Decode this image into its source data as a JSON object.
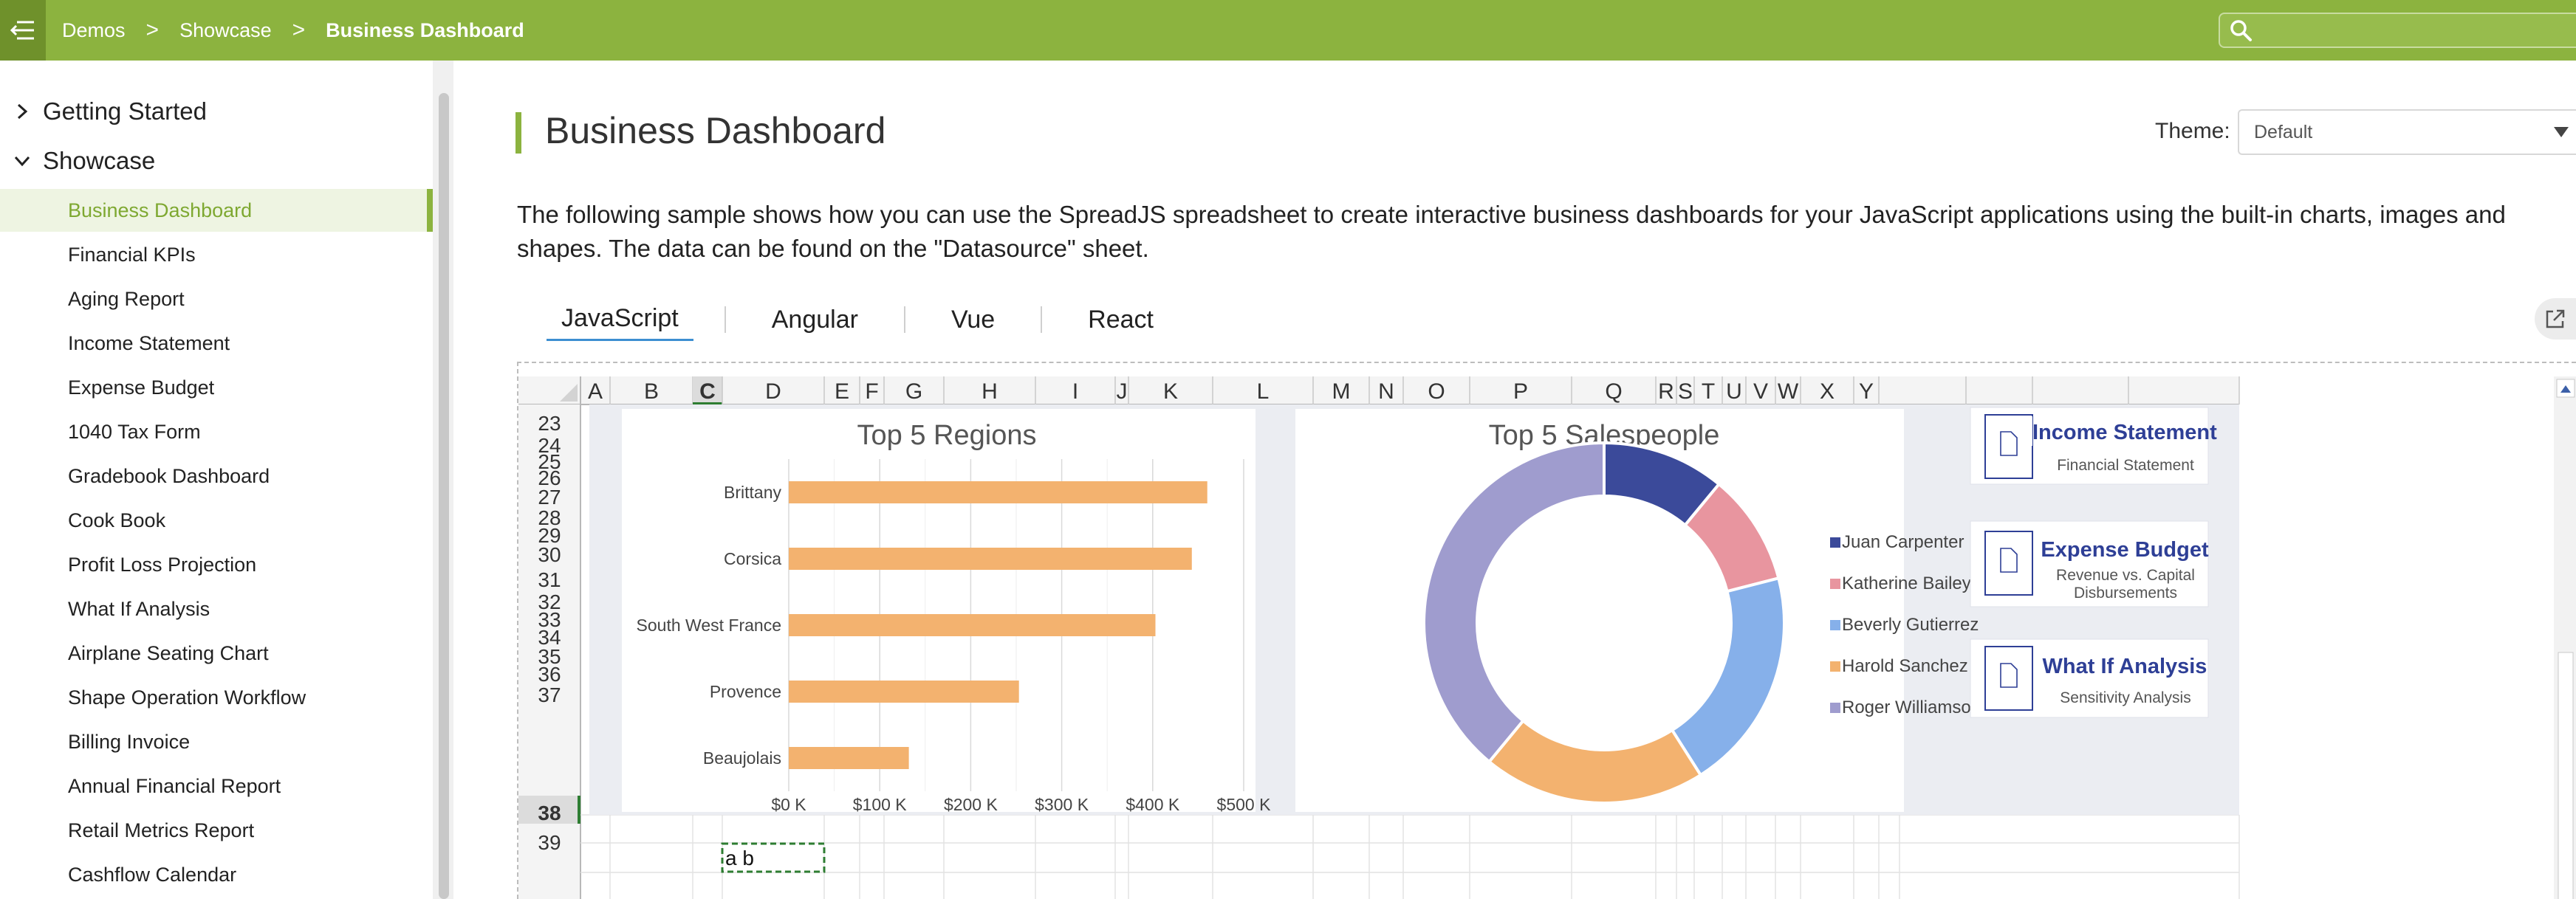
{
  "breadcrumb": [
    "Demos",
    "Showcase",
    "Business Dashboard"
  ],
  "breadcrumb_sep": ">",
  "sidebar": {
    "groups": [
      {
        "label": "Getting Started",
        "expanded": false
      },
      {
        "label": "Showcase",
        "expanded": true
      }
    ],
    "items": [
      "Business Dashboard",
      "Financial KPIs",
      "Aging Report",
      "Income Statement",
      "Expense Budget",
      "1040 Tax Form",
      "Gradebook Dashboard",
      "Cook Book",
      "Profit Loss Projection",
      "What If Analysis",
      "Airplane Seating Chart",
      "Shape Operation Workflow",
      "Billing Invoice",
      "Annual Financial Report",
      "Retail Metrics Report",
      "Cashflow Calendar"
    ],
    "active_item": "Business Dashboard"
  },
  "page": {
    "title": "Business Dashboard",
    "theme_label": "Theme:",
    "theme_value": "Default",
    "description": "The following sample shows how you can use the SpreadJS spreadsheet to create interactive business dashboards for your JavaScript applications using the built-in charts, images and shapes. The data can be found on the \"Datasource\" sheet."
  },
  "tabs": [
    "JavaScript",
    "Angular",
    "Vue",
    "React"
  ],
  "active_tab": "JavaScript",
  "spreadsheet": {
    "columns": [
      "A",
      "B",
      "C",
      "D",
      "E",
      "F",
      "G",
      "H",
      "I",
      "J",
      "K",
      "L",
      "M",
      "N",
      "O",
      "P",
      "Q",
      "R",
      "S",
      "T",
      "U",
      "V",
      "W",
      "X",
      "Y"
    ],
    "selected_column": "C",
    "rows": [
      "23",
      "24",
      "25",
      "26",
      "27",
      "28",
      "29",
      "30",
      "31",
      "32",
      "33",
      "34",
      "35",
      "36",
      "37",
      "38",
      "39"
    ],
    "selected_row": "38",
    "active_cell": "C38",
    "active_cell_value": "a b",
    "cards": [
      {
        "title": "Income Statement",
        "subtitle": "Financial Statement"
      },
      {
        "title": "Expense Budget",
        "subtitle": "Revenue vs. Capital Disbursements"
      },
      {
        "title": "What If Analysis",
        "subtitle": "Sensitivity Analysis"
      }
    ]
  },
  "colors": {
    "brand_green": "#8cb33f",
    "bar_orange": "#f3b26f",
    "card_blue": "#2e3f96",
    "donut": [
      "#3b4a9a",
      "#e8959f",
      "#86b0ea",
      "#f3b26f",
      "#9f9cce"
    ]
  },
  "chart_data": [
    {
      "type": "bar",
      "orientation": "horizontal",
      "title": "Top 5 Regions",
      "categories": [
        "Brittany",
        "Corsica",
        "South West France",
        "Provence",
        "Beaujolais"
      ],
      "values": [
        460000,
        443000,
        403000,
        253000,
        132000
      ],
      "xlim": [
        0,
        500000
      ],
      "x_ticks": [
        "$0 K",
        "$100 K",
        "$200 K",
        "$300 K",
        "$400 K",
        "$500 K"
      ],
      "grid": true
    },
    {
      "type": "pie",
      "variant": "donut",
      "title": "Top 5 Salespeople",
      "labels": [
        "Juan Carpenter",
        "Katherine Bailey",
        "Beverly Gutierrez",
        "Harold Sanchez",
        "Roger Williamson"
      ],
      "values": [
        11,
        10,
        20,
        20,
        39
      ],
      "legend": "right"
    }
  ]
}
